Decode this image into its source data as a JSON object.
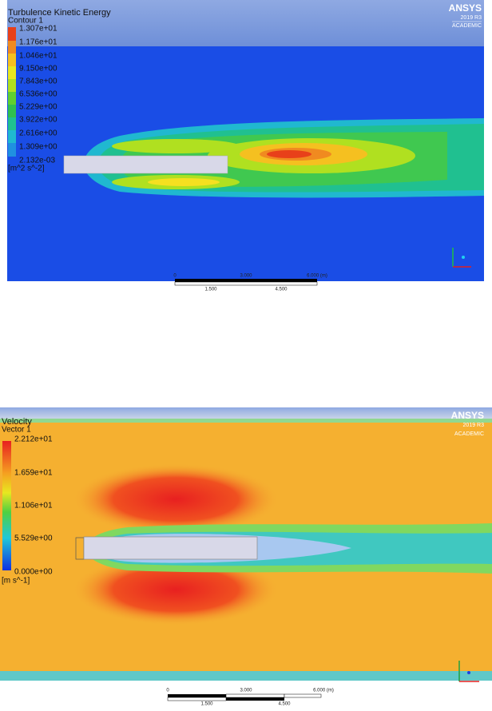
{
  "contour_view": {
    "title": "Turbulence Kinetic Energy",
    "subtitle": "Contour 1",
    "legend": [
      "1.307e+01",
      "1.176e+01",
      "1.046e+01",
      "9.150e+00",
      "7.843e+00",
      "6.536e+00",
      "5.229e+00",
      "3.922e+00",
      "2.616e+00",
      "1.309e+00",
      "2.132e-03"
    ],
    "unit": "[m^2 s^-2]",
    "scale": {
      "top": [
        "0",
        "3.000",
        "6.000 (m)"
      ],
      "bottom": [
        "1.500",
        "4.500"
      ]
    },
    "logo": {
      "brand": "ANSYS",
      "version": "2019 R3",
      "edition": "ACADEMIC"
    }
  },
  "vector_view": {
    "title": "Velocity",
    "subtitle": "Vector 1",
    "legend": [
      "2.212e+01",
      "1.659e+01",
      "1.106e+01",
      "5.529e+00",
      "0.000e+00"
    ],
    "unit": "[m s^-1]",
    "scale": {
      "top": [
        "0",
        "3.000",
        "6.000 (m)"
      ],
      "bottom": [
        "1.500",
        "4.500"
      ]
    },
    "logo": {
      "brand": "ANSYS",
      "version": "2019 R3",
      "edition": "ACADEMIC"
    }
  }
}
